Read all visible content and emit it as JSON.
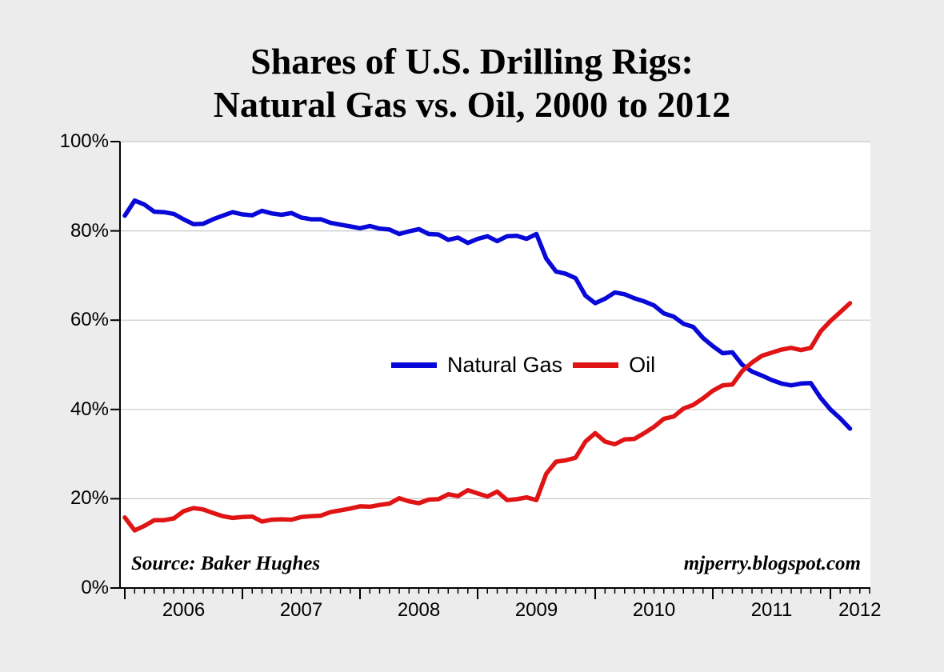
{
  "page": {
    "background": "#ececec"
  },
  "title": {
    "line1": "Shares of U.S. Drilling Rigs:",
    "line2": "Natural Gas vs. Oil, 2000 to 2012"
  },
  "source_note": "Source: Baker Hughes",
  "watermark": "mjperry.blogspot.com",
  "chart_data": {
    "type": "line",
    "title": "Shares of U.S. Drilling Rigs: Natural Gas vs. Oil, 2000 to 2012",
    "xlabel": "",
    "ylabel": "",
    "grid": "horizontal",
    "legend_position": "center-inside",
    "y_range": [
      0,
      100
    ],
    "y_ticks": [
      0,
      20,
      40,
      60,
      80,
      100
    ],
    "y_tick_labels": [
      "0%",
      "20%",
      "40%",
      "60%",
      "80%",
      "100%"
    ],
    "x_range": [
      2005.959,
      2012.34
    ],
    "x_year_ticks": [
      2006,
      2007,
      2008,
      2009,
      2010,
      2011,
      2012
    ],
    "x_minor_tick": "monthly",
    "x_tick_labels": [
      {
        "text": "2006",
        "x": 2006.5
      },
      {
        "text": "2007",
        "x": 2007.5
      },
      {
        "text": "2008",
        "x": 2008.5
      },
      {
        "text": "2009",
        "x": 2009.5
      },
      {
        "text": "2010",
        "x": 2010.5
      },
      {
        "text": "2011",
        "x": 2011.5
      },
      {
        "text": "2012",
        "x": 2012.25
      }
    ],
    "x0": 2006.0,
    "dx_years": 0.0833333,
    "colors": {
      "plot_bg": "#ffffff",
      "grid": "#c8c8c8",
      "axis": "#000000"
    },
    "series": [
      {
        "name": "Natural Gas",
        "color": "#0808d8",
        "values": [
          83.4,
          86.8,
          85.9,
          84.3,
          84.2,
          83.8,
          82.6,
          81.5,
          81.6,
          82.6,
          83.4,
          84.2,
          83.7,
          83.5,
          84.5,
          83.9,
          83.6,
          84.0,
          83.0,
          82.6,
          82.6,
          81.8,
          81.4,
          81.0,
          80.6,
          81.1,
          80.5,
          80.3,
          79.3,
          79.9,
          80.4,
          79.3,
          79.2,
          78.0,
          78.5,
          77.3,
          78.2,
          78.8,
          77.7,
          78.8,
          78.9,
          78.2,
          79.3,
          73.8,
          70.9,
          70.4,
          69.4,
          65.5,
          63.8,
          64.8,
          66.2,
          65.8,
          64.9,
          64.2,
          63.3,
          61.5,
          60.8,
          59.2,
          58.5,
          56.0,
          54.2,
          52.6,
          52.8,
          50.0,
          48.5,
          47.6,
          46.6,
          45.8,
          45.4,
          45.8,
          45.9,
          42.6,
          40.0,
          38.0,
          35.7
        ]
      },
      {
        "name": "Oil",
        "color": "#e01414",
        "values": [
          15.8,
          12.9,
          13.9,
          15.2,
          15.2,
          15.6,
          17.2,
          17.9,
          17.6,
          16.8,
          16.1,
          15.7,
          15.9,
          16.0,
          14.9,
          15.3,
          15.4,
          15.3,
          15.9,
          16.1,
          16.2,
          17.0,
          17.4,
          17.8,
          18.3,
          18.2,
          18.6,
          18.9,
          20.1,
          19.4,
          19.0,
          19.8,
          19.9,
          21.0,
          20.6,
          21.9,
          21.2,
          20.5,
          21.6,
          19.7,
          19.9,
          20.3,
          19.7,
          25.6,
          28.3,
          28.6,
          29.2,
          32.8,
          34.7,
          32.8,
          32.2,
          33.3,
          33.4,
          34.7,
          36.1,
          37.9,
          38.4,
          40.2,
          41.0,
          42.5,
          44.2,
          45.4,
          45.6,
          48.6,
          50.5,
          52.0,
          52.7,
          53.4,
          53.8,
          53.3,
          53.8,
          57.5,
          59.8,
          61.8,
          63.8
        ]
      }
    ]
  }
}
